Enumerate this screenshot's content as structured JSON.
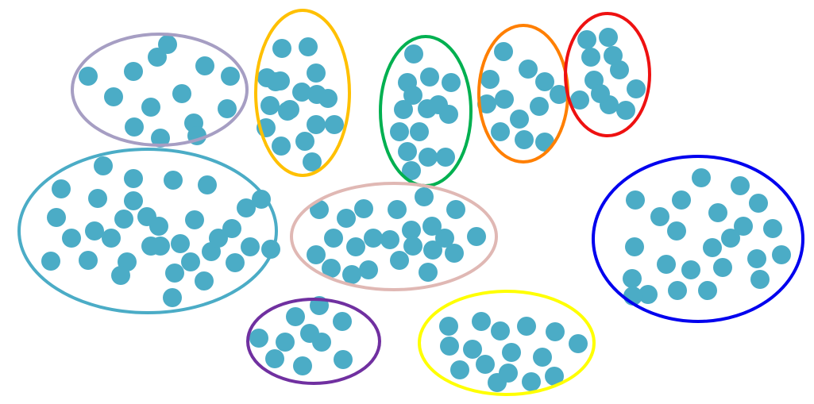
{
  "diagram": {
    "point_color": "#4bacc6",
    "clusters": [
      {
        "id": "lavender",
        "stroke": "#a69ec3",
        "points": 14
      },
      {
        "id": "gold",
        "stroke": "#ffc000",
        "points": 18
      },
      {
        "id": "green",
        "stroke": "#00b050",
        "points": 15
      },
      {
        "id": "orange",
        "stroke": "#ff7f00",
        "points": 12
      },
      {
        "id": "red",
        "stroke": "#ee1111",
        "points": 11
      },
      {
        "id": "teal",
        "stroke": "#4bacc6",
        "points": 34
      },
      {
        "id": "pink",
        "stroke": "#e0b8b4",
        "points": 23
      },
      {
        "id": "blue",
        "stroke": "#0000ee",
        "points": 24
      },
      {
        "id": "purple",
        "stroke": "#7030a0",
        "points": 10
      },
      {
        "id": "yellow",
        "stroke": "#ffff00",
        "points": 16
      }
    ]
  }
}
